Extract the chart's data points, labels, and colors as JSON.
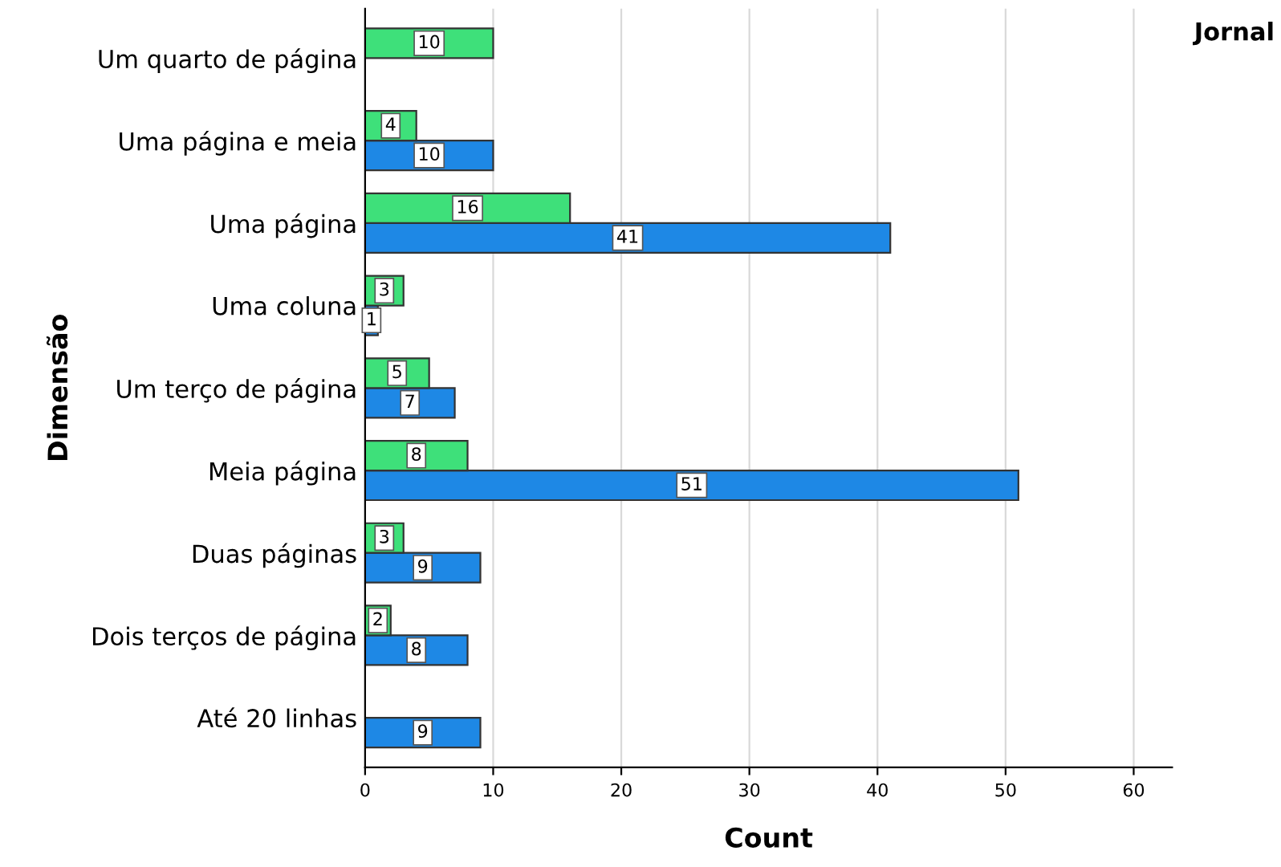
{
  "chart_data": {
    "type": "bar",
    "orientation": "horizontal",
    "xlabel": "Count",
    "ylabel": "Dimensão",
    "legend_title": "Jornal",
    "grid": "x",
    "data_labels": true,
    "categories": [
      "Um quarto de página",
      "Uma página e meia",
      "Uma página",
      "Uma coluna",
      "Um terço de página",
      "Meia página",
      "Duas páginas",
      "Dois terços de página",
      "Até 20 linhas"
    ],
    "xlim": [
      0,
      63
    ],
    "xticks": [
      0,
      10,
      20,
      30,
      40,
      50,
      60
    ],
    "series": [
      {
        "color": "#1e88e5",
        "values": [
          null,
          10,
          41,
          1,
          7,
          51,
          9,
          8,
          9
        ]
      },
      {
        "color": "#3ee07a",
        "values": [
          10,
          4,
          16,
          3,
          5,
          8,
          3,
          2,
          null
        ]
      }
    ]
  }
}
